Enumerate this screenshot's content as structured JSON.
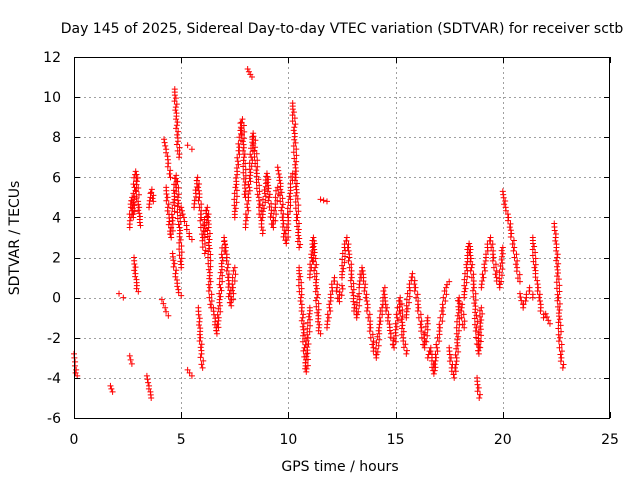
{
  "chart_data": {
    "type": "scatter",
    "title": "Day 145 of 2025, Sidereal Day-to-day VTEC variation (SDTVAR) for receiver sctb",
    "xlabel": "GPS time / hours",
    "ylabel": "SDTVAR / TECUs",
    "xlim": [
      0,
      25
    ],
    "ylim": [
      -6,
      12
    ],
    "xticks": [
      0,
      5,
      10,
      15,
      20,
      25
    ],
    "yticks": [
      -6,
      -4,
      -2,
      0,
      2,
      4,
      6,
      8,
      10,
      12
    ],
    "grid": true,
    "marker": "+",
    "marker_color": "#ff0000",
    "series": [
      {
        "name": "SDTVAR",
        "segments": [
          {
            "x0": 0.0,
            "x1": 0.15,
            "ys": [
              -2.8,
              -3.2,
              -3.6,
              -3.9
            ]
          },
          {
            "x0": 1.7,
            "x1": 1.8,
            "ys": [
              -4.4,
              -4.7
            ]
          },
          {
            "x0": 2.1,
            "x1": 2.3,
            "ys": [
              0.2,
              0.0
            ]
          },
          {
            "x0": 2.6,
            "x1": 2.7,
            "ys": [
              -2.9,
              -3.3
            ]
          },
          {
            "x0": 2.6,
            "x1": 3.1,
            "ys": [
              3.5,
              4.5,
              5.0,
              4.0,
              5.5,
              6.3,
              5.8,
              4.8,
              4.2,
              3.6
            ]
          },
          {
            "x0": 2.8,
            "x1": 3.0,
            "ys": [
              2.0,
              1.2,
              0.6,
              0.3
            ]
          },
          {
            "x0": 3.4,
            "x1": 3.6,
            "ys": [
              -3.9,
              -4.4,
              -5.0
            ]
          },
          {
            "x0": 3.5,
            "x1": 3.7,
            "ys": [
              4.5,
              5.0,
              5.4,
              4.8
            ]
          },
          {
            "x0": 4.1,
            "x1": 4.4,
            "ys": [
              -0.1,
              -0.5,
              -0.9
            ]
          },
          {
            "x0": 4.2,
            "x1": 4.5,
            "ys": [
              7.9,
              7.4,
              6.7,
              6.0
            ]
          },
          {
            "x0": 4.3,
            "x1": 5.0,
            "ys": [
              5.5,
              4.5,
              3.8,
              3.0,
              4.0,
              5.2,
              6.1,
              5.0,
              3.5,
              1.5
            ]
          },
          {
            "x0": 4.7,
            "x1": 4.9,
            "ys": [
              10.4,
              9.5,
              8.6,
              7.8,
              7.0
            ]
          },
          {
            "x0": 4.6,
            "x1": 5.0,
            "ys": [
              2.2,
              1.2,
              0.4,
              0.1
            ]
          },
          {
            "x0": 5.0,
            "x1": 5.5,
            "ys": [
              4.5,
              4.0,
              3.6,
              3.2,
              2.9
            ]
          },
          {
            "x0": 5.3,
            "x1": 5.5,
            "ys": [
              7.6,
              7.4
            ]
          },
          {
            "x0": 5.3,
            "x1": 5.5,
            "ys": [
              -3.6,
              -3.9
            ]
          },
          {
            "x0": 5.6,
            "x1": 6.1,
            "ys": [
              4.5,
              5.2,
              6.0,
              5.0,
              4.0,
              3.0,
              2.2
            ]
          },
          {
            "x0": 5.8,
            "x1": 6.0,
            "ys": [
              -0.5,
              -1.2,
              -2.0,
              -2.8,
              -3.5
            ]
          },
          {
            "x0": 6.1,
            "x1": 6.4,
            "ys": [
              3.0,
              4.2,
              4.5,
              3.5,
              0.5,
              -0.5
            ]
          },
          {
            "x0": 6.5,
            "x1": 7.0,
            "ys": [
              -0.5,
              -1.2,
              -1.8,
              -1.0,
              0.5,
              2.0,
              2.8
            ]
          },
          {
            "x0": 7.0,
            "x1": 7.5,
            "ys": [
              3.0,
              2.5,
              1.5,
              0.2,
              -0.4,
              0.5,
              1.5
            ]
          },
          {
            "x0": 7.5,
            "x1": 8.0,
            "ys": [
              4.0,
              5.8,
              6.8,
              7.5,
              8.5,
              8.9,
              7.0,
              5.0
            ]
          },
          {
            "x0": 8.1,
            "x1": 8.3,
            "ys": [
              11.4,
              11.0
            ]
          },
          {
            "x0": 8.0,
            "x1": 8.8,
            "ys": [
              3.5,
              4.5,
              5.5,
              7.0,
              8.2,
              7.5,
              6.2,
              5.0,
              4.0,
              3.2
            ]
          },
          {
            "x0": 8.8,
            "x1": 9.5,
            "ys": [
              4.0,
              5.2,
              6.2,
              5.0,
              4.2,
              3.5,
              4.5,
              5.5
            ]
          },
          {
            "x0": 9.5,
            "x1": 10.2,
            "ys": [
              6.5,
              6.0,
              4.5,
              3.2,
              2.7,
              4.0,
              5.5,
              6.2
            ]
          },
          {
            "x0": 10.2,
            "x1": 10.5,
            "ys": [
              9.7,
              8.5,
              6.0,
              4.0,
              2.5
            ]
          },
          {
            "x0": 10.5,
            "x1": 11.0,
            "ys": [
              1.5,
              0.0,
              -1.0,
              -2.5,
              -3.7,
              -2.0,
              -0.5
            ]
          },
          {
            "x0": 11.0,
            "x1": 11.5,
            "ys": [
              1.0,
              2.0,
              3.0,
              1.5,
              0.0,
              -1.5,
              -1.8
            ]
          },
          {
            "x0": 11.5,
            "x1": 11.8,
            "ys": [
              4.9,
              4.8
            ]
          },
          {
            "x0": 11.8,
            "x1": 12.5,
            "ys": [
              -1.5,
              -0.5,
              0.5,
              1.0,
              0.5,
              -0.2,
              0.6
            ]
          },
          {
            "x0": 12.5,
            "x1": 13.3,
            "ys": [
              1.0,
              2.5,
              3.0,
              2.0,
              1.0,
              -0.5,
              -1.0,
              0.2
            ]
          },
          {
            "x0": 13.3,
            "x1": 14.5,
            "ys": [
              0.5,
              1.5,
              0.5,
              -0.5,
              -1.5,
              -2.5,
              -3.0,
              -1.5,
              -0.5,
              0.5
            ]
          },
          {
            "x0": 14.5,
            "x1": 15.5,
            "ys": [
              0.0,
              -1.0,
              -1.8,
              -2.5,
              -1.0,
              0.0,
              -2.0,
              -2.8
            ]
          },
          {
            "x0": 15.5,
            "x1": 16.5,
            "ys": [
              -1.0,
              0.5,
              1.2,
              0.5,
              -0.5,
              -1.5,
              -2.5,
              -1.0
            ]
          },
          {
            "x0": 16.5,
            "x1": 17.5,
            "ys": [
              -3.0,
              -2.5,
              -3.8,
              -2.5,
              -1.5,
              -0.5,
              0.5,
              0.8
            ]
          },
          {
            "x0": 17.5,
            "x1": 18.2,
            "ys": [
              -2.5,
              -3.5,
              -4.0,
              -3.0,
              0.0,
              -0.5,
              -1.5
            ]
          },
          {
            "x0": 18.2,
            "x1": 19.0,
            "ys": [
              0.0,
              1.5,
              2.7,
              1.5,
              0.5,
              -1.5,
              -2.8,
              -0.5
            ]
          },
          {
            "x0": 18.8,
            "x1": 18.9,
            "ys": [
              -4.0,
              -5.0
            ]
          },
          {
            "x0": 19.0,
            "x1": 20.0,
            "ys": [
              0.5,
              1.5,
              2.5,
              3.0,
              2.0,
              1.0,
              0.5,
              2.5
            ]
          },
          {
            "x0": 20.0,
            "x1": 20.8,
            "ys": [
              5.3,
              4.5,
              4.0,
              3.2,
              2.5,
              1.5,
              0.8
            ]
          },
          {
            "x0": 20.8,
            "x1": 21.4,
            "ys": [
              0.2,
              -0.5,
              0.0,
              0.5,
              0.0
            ]
          },
          {
            "x0": 21.4,
            "x1": 21.9,
            "ys": [
              3.0,
              1.2,
              0.5,
              -0.5,
              -1.0
            ]
          },
          {
            "x0": 22.0,
            "x1": 22.2,
            "ys": [
              -0.8,
              -1.3
            ]
          },
          {
            "x0": 22.4,
            "x1": 22.8,
            "ys": [
              3.7,
              3.0,
              2.0,
              0.0,
              -2.0,
              -3.0,
              -3.5
            ]
          }
        ]
      }
    ]
  }
}
